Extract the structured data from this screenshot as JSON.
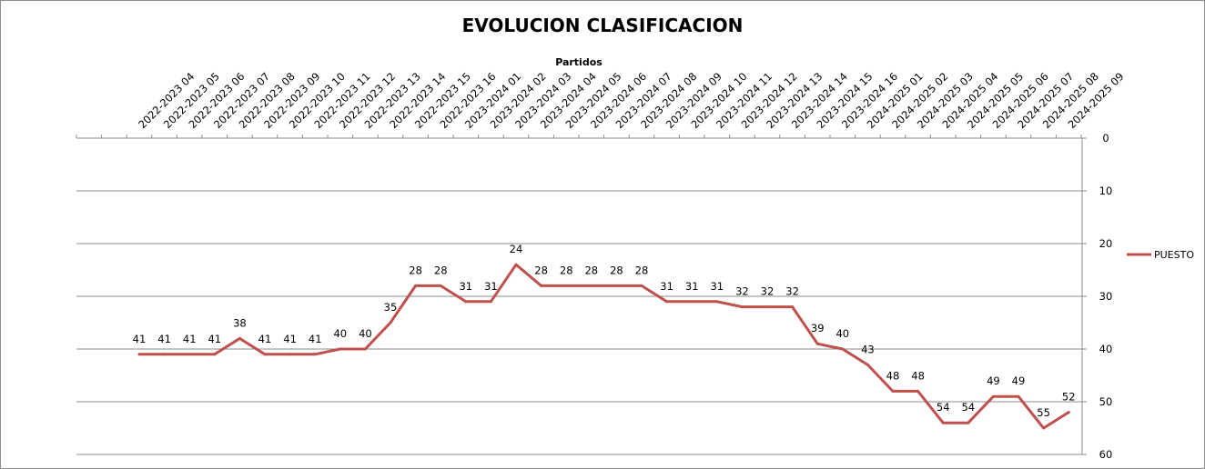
{
  "chart_data": {
    "type": "line",
    "title": "EVOLUCION CLASIFICACION",
    "xlabel": "Partidos",
    "ylabel": "",
    "ylim": [
      0,
      60
    ],
    "yticks": [
      0,
      10,
      20,
      30,
      40,
      50,
      60
    ],
    "y_inverted": true,
    "x_axis_position": "top",
    "y_axis_position": "right",
    "grid": true,
    "legend": "right",
    "categories": [
      "2022-2023 04",
      "2022-2023 05",
      "2022-2023 06",
      "2022-2023 07",
      "2022-2023 08",
      "2022-2023 09",
      "2022-2023 10",
      "2022-2023 11",
      "2022-2023 12",
      "2022-2023 13",
      "2022-2023 14",
      "2022-2023 15",
      "2022-2023 16",
      "2023-2024 01",
      "2023-2024 02",
      "2023-2024 03",
      "2023-2024 04",
      "2023-2024 05",
      "2023-2024 06",
      "2023-2024 07",
      "2023-2024 08",
      "2023-2024 09",
      "2023-2024 10",
      "2023-2024 11",
      "2023-2024 12",
      "2023-2024 13",
      "2023-2024 14",
      "2023-2024 15",
      "2023-2024 16",
      "2024-2025 01",
      "2024-2025 02",
      "2024-2025 03",
      "2024-2025 04",
      "2024-2025 05",
      "2024-2025 06",
      "2024-2025 07",
      "2024-2025 08",
      "2024-2025 09"
    ],
    "series": [
      {
        "name": "PUESTO",
        "color": "#c0504d",
        "values": [
          41,
          41,
          41,
          41,
          38,
          41,
          41,
          41,
          40,
          40,
          35,
          28,
          28,
          31,
          31,
          24,
          28,
          28,
          28,
          28,
          28,
          31,
          31,
          31,
          32,
          32,
          32,
          39,
          40,
          43,
          48,
          48,
          54,
          54,
          49,
          49,
          55,
          52
        ]
      }
    ]
  }
}
